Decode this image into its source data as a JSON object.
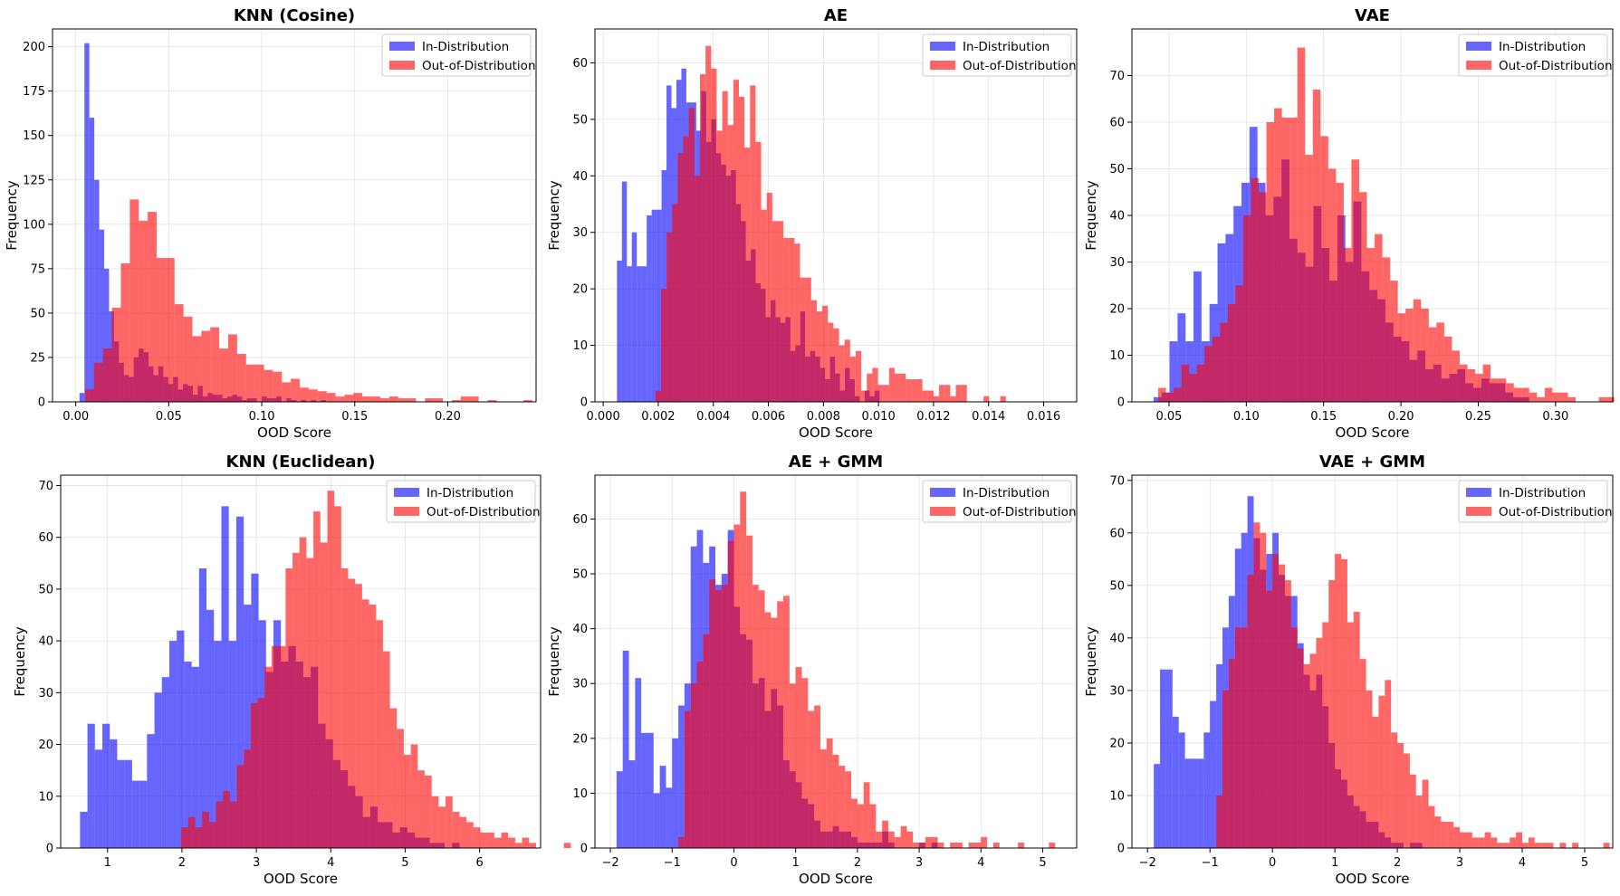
{
  "legend_placement": "top-right",
  "colors": {
    "in_distribution": "#0000ff",
    "out_of_distribution": "#ff0000",
    "alpha": 0.6
  },
  "legend": [
    "In-Distribution",
    "Out-of-Distribution"
  ],
  "chart_data": [
    {
      "type": "bar",
      "title": "KNN (Cosine)",
      "xlabel": "OOD Score",
      "ylabel": "Frequency",
      "xlim": [
        -0.0125,
        0.2475
      ],
      "ylim": [
        0,
        210
      ],
      "xticks": [
        "0.00",
        "0.05",
        "0.10",
        "0.15",
        "0.20"
      ],
      "xtick_values": [
        0,
        0.05,
        0.1,
        0.15,
        0.2
      ],
      "yticks": [
        "0",
        "25",
        "50",
        "75",
        "100",
        "125",
        "150",
        "175",
        "200"
      ],
      "ytick_values": [
        0,
        25,
        50,
        75,
        100,
        125,
        150,
        175,
        200
      ],
      "grid": true,
      "series": [
        {
          "name": "In-Distribution",
          "color": "#0000ff",
          "x_start": 0.002,
          "bin_width": 0.00265,
          "values": [
            5,
            202,
            160,
            125,
            97,
            75,
            51,
            34,
            22,
            15,
            14,
            25,
            30,
            28,
            20,
            15,
            20,
            14,
            10,
            14,
            7,
            10,
            9,
            4,
            9,
            3,
            5,
            4,
            4,
            2,
            3,
            4,
            3,
            1,
            2,
            2,
            0,
            3,
            2,
            2,
            3,
            0,
            2,
            1,
            0,
            1,
            0,
            1,
            0,
            1,
            0,
            0,
            0,
            0,
            0,
            0,
            0,
            0,
            0,
            0,
            0,
            0,
            0,
            0,
            0,
            0,
            0,
            0,
            0,
            0,
            0,
            0,
            0,
            0,
            0,
            0,
            0,
            0,
            0,
            0,
            0,
            0,
            0,
            0,
            0,
            0,
            0,
            0,
            0
          ]
        },
        {
          "name": "Out-of-Distribution",
          "color": "#ff0000",
          "x_start": 0.005,
          "bin_width": 0.00481,
          "values": [
            7,
            22,
            30,
            53,
            78,
            114,
            102,
            107,
            81,
            81,
            55,
            48,
            37,
            40,
            42,
            30,
            38,
            27,
            21,
            21,
            18,
            17,
            11,
            13,
            8,
            7,
            6,
            5,
            3,
            4,
            5,
            3,
            3,
            2,
            3,
            2,
            2,
            0,
            2,
            2,
            0,
            1,
            3,
            3,
            0,
            1,
            0,
            0,
            0,
            1
          ]
        }
      ]
    },
    {
      "type": "bar",
      "title": "AE",
      "xlabel": "OOD Score",
      "ylabel": "Frequency",
      "xlim": [
        -0.0003,
        0.0172
      ],
      "ylim": [
        0,
        66
      ],
      "xticks": [
        "0.000",
        "0.002",
        "0.004",
        "0.006",
        "0.008",
        "0.010",
        "0.012",
        "0.014",
        "0.016"
      ],
      "xtick_values": [
        0,
        0.002,
        0.004,
        0.006,
        0.008,
        0.01,
        0.012,
        0.014,
        0.016
      ],
      "yticks": [
        "0",
        "10",
        "20",
        "30",
        "40",
        "50",
        "60"
      ],
      "ytick_values": [
        0,
        10,
        20,
        30,
        40,
        50,
        60
      ],
      "grid": true,
      "series": [
        {
          "name": "In-Distribution",
          "color": "#0000ff",
          "x_start": 0.0005,
          "bin_width": 0.00018,
          "values": [
            25,
            39,
            24,
            30,
            24,
            24,
            33,
            34,
            34,
            41,
            56,
            52,
            57,
            59,
            53,
            53,
            48,
            55,
            46,
            50,
            44,
            42,
            40,
            41,
            35,
            32,
            25,
            27,
            21,
            20,
            15,
            18,
            15,
            14,
            15,
            9,
            10,
            16,
            8,
            9,
            8,
            6,
            4,
            8,
            5,
            2,
            6,
            4,
            1,
            0,
            2,
            1,
            2
          ]
        },
        {
          "name": "Out-of-Distribution",
          "color": "#ff0000",
          "x_start": 0.0019,
          "bin_width": 0.000202,
          "values": [
            2,
            20,
            30,
            35,
            44,
            47,
            52,
            40,
            58,
            63,
            59,
            48,
            55,
            49,
            57,
            54,
            45,
            56,
            46,
            34,
            37,
            32,
            32,
            29,
            29,
            28,
            22,
            22,
            18,
            16,
            17,
            14,
            13,
            10,
            11,
            8,
            9,
            2,
            5,
            6,
            3,
            3,
            6,
            5,
            5,
            4,
            4,
            4,
            2,
            2,
            1,
            3,
            3,
            1,
            3,
            3,
            0,
            0,
            0,
            1,
            0,
            0,
            1
          ]
        }
      ]
    },
    {
      "type": "bar",
      "title": "VAE",
      "xlabel": "OOD Score",
      "ylabel": "Frequency",
      "xlim": [
        0.026,
        0.337
      ],
      "ylim": [
        0,
        80
      ],
      "xticks": [
        "0.05",
        "0.10",
        "0.15",
        "0.20",
        "0.25",
        "0.30"
      ],
      "xtick_values": [
        0.05,
        0.1,
        0.15,
        0.2,
        0.25,
        0.3
      ],
      "yticks": [
        "0",
        "10",
        "20",
        "30",
        "40",
        "50",
        "60",
        "70"
      ],
      "ytick_values": [
        0,
        10,
        20,
        30,
        40,
        50,
        60,
        70
      ],
      "grid": true,
      "series": [
        {
          "name": "In-Distribution",
          "color": "#0000ff",
          "x_start": 0.04,
          "bin_width": 0.00517,
          "values": [
            1,
            2,
            13,
            19,
            13,
            28,
            13,
            21,
            34,
            36,
            42,
            47,
            59,
            47,
            40,
            44,
            52,
            35,
            32,
            29,
            42,
            33,
            26,
            40,
            30,
            43,
            28,
            24,
            22,
            17,
            14,
            13,
            9,
            11,
            7,
            8,
            5,
            6,
            7,
            4,
            3,
            5,
            4,
            4,
            2,
            1,
            1,
            0,
            0,
            0,
            0,
            0
          ]
        },
        {
          "name": "Out-of-Distribution",
          "color": "#ff0000",
          "x_start": 0.043,
          "bin_width": 0.005,
          "values": [
            3,
            2,
            3,
            8,
            6,
            8,
            12,
            14,
            17,
            21,
            25,
            40,
            48,
            45,
            60,
            63,
            61,
            61,
            76,
            53,
            67,
            57,
            50,
            47,
            33,
            52,
            45,
            33,
            36,
            31,
            26,
            19,
            20,
            22,
            20,
            16,
            17,
            14,
            11,
            8,
            7,
            6,
            8,
            5,
            5,
            4,
            3,
            3,
            2,
            1,
            3,
            2,
            2,
            1,
            0,
            0,
            0,
            1,
            1,
            0,
            1
          ]
        }
      ]
    },
    {
      "type": "bar",
      "title": "KNN (Euclidean)",
      "xlabel": "OOD Score",
      "ylabel": "Frequency",
      "xlim": [
        0.37,
        6.82
      ],
      "ylim": [
        0,
        72
      ],
      "xticks": [
        "1",
        "2",
        "3",
        "4",
        "5",
        "6"
      ],
      "xtick_values": [
        1,
        2,
        3,
        4,
        5,
        6
      ],
      "yticks": [
        "0",
        "10",
        "20",
        "30",
        "40",
        "50",
        "60",
        "70"
      ],
      "ytick_values": [
        0,
        10,
        20,
        30,
        40,
        50,
        60,
        70
      ],
      "grid": true,
      "series": [
        {
          "name": "In-Distribution",
          "color": "#0000ff",
          "x_start": 0.63,
          "bin_width": 0.1,
          "values": [
            7,
            24,
            19,
            24,
            21,
            17,
            17,
            13,
            13,
            22,
            30,
            33,
            40,
            42,
            36,
            35,
            54,
            46,
            40,
            66,
            40,
            64,
            47,
            53,
            44,
            34,
            44,
            36,
            39,
            36,
            33,
            35,
            24,
            21,
            17,
            15,
            12,
            10,
            6,
            8,
            5,
            5,
            3,
            4,
            3,
            2,
            2,
            1,
            1,
            0,
            1
          ]
        },
        {
          "name": "Out-of-Distribution",
          "color": "#ff0000",
          "x_start": 1.99,
          "bin_width": 0.0935,
          "values": [
            4,
            6,
            4,
            7,
            5,
            9,
            11,
            9,
            16,
            19,
            28,
            29,
            35,
            39,
            39,
            54,
            57,
            60,
            56,
            65,
            59,
            69,
            66,
            54,
            52,
            51,
            48,
            47,
            44,
            38,
            27,
            23,
            18,
            20,
            15,
            14,
            10,
            8,
            10,
            7,
            6,
            5,
            4,
            3,
            3,
            2,
            3,
            2,
            1,
            2,
            1,
            0,
            0,
            0,
            0,
            1
          ]
        }
      ]
    },
    {
      "type": "bar",
      "title": "AE + GMM",
      "xlabel": "OOD Score",
      "ylabel": "Frequency",
      "xlim": [
        -2.25,
        5.55
      ],
      "ylim": [
        0,
        68
      ],
      "xticks": [
        "−2",
        "−1",
        "0",
        "1",
        "2",
        "3",
        "4",
        "5"
      ],
      "xtick_values": [
        -2,
        -1,
        0,
        1,
        2,
        3,
        4,
        5
      ],
      "yticks": [
        "0",
        "10",
        "20",
        "30",
        "40",
        "50",
        "60"
      ],
      "ytick_values": [
        0,
        10,
        20,
        30,
        40,
        50,
        60
      ],
      "grid": true,
      "series": [
        {
          "name": "In-Distribution",
          "color": "#0000ff",
          "x_start": -1.9,
          "bin_width": 0.1,
          "values": [
            14,
            36,
            16,
            31,
            21,
            21,
            10,
            15,
            11,
            20,
            26,
            30,
            55,
            58,
            52,
            55,
            48,
            50,
            58,
            44,
            39,
            38,
            30,
            31,
            25,
            29,
            26,
            16,
            14,
            12,
            9,
            8,
            5,
            3,
            3,
            4,
            3,
            3,
            2,
            1,
            1,
            1,
            1,
            3,
            1,
            0,
            0,
            0,
            0,
            1,
            0,
            1,
            0,
            0
          ]
        },
        {
          "name": "Out-of-Distribution",
          "color": "#ff0000",
          "x_start": -0.9,
          "bin_width": 0.1,
          "values": [
            2,
            25,
            30,
            34,
            39,
            49,
            47,
            48,
            56,
            59,
            65,
            57,
            48,
            47,
            43,
            42,
            45,
            46,
            30,
            33,
            31,
            25,
            26,
            18,
            20,
            17,
            15,
            14,
            9,
            8,
            12,
            8,
            3,
            5,
            3,
            2,
            4,
            3,
            1,
            1,
            2,
            2,
            1,
            0,
            1,
            1,
            0,
            1,
            1,
            2,
            0,
            1,
            0,
            0,
            0,
            1,
            0,
            0,
            0,
            0,
            1
          ]
        }
      ]
    },
    {
      "type": "bar",
      "title": "VAE + GMM",
      "xlabel": "OOD Score",
      "ylabel": "Frequency",
      "xlim": [
        -2.25,
        5.45
      ],
      "ylim": [
        0,
        71
      ],
      "xticks": [
        "−2",
        "−1",
        "0",
        "1",
        "2",
        "3",
        "4",
        "5"
      ],
      "xtick_values": [
        -2,
        -1,
        0,
        1,
        2,
        3,
        4,
        5
      ],
      "yticks": [
        "0",
        "10",
        "20",
        "30",
        "40",
        "50",
        "60",
        "70"
      ],
      "ytick_values": [
        0,
        10,
        20,
        30,
        40,
        50,
        60,
        70
      ],
      "grid": true,
      "series": [
        {
          "name": "In-Distribution",
          "color": "#0000ff",
          "x_start": -1.9,
          "bin_width": 0.1,
          "values": [
            16,
            34,
            34,
            25,
            22,
            17,
            17,
            17,
            22,
            28,
            35,
            42,
            48,
            57,
            60,
            67,
            59,
            53,
            56,
            60,
            52,
            48,
            48,
            39,
            33,
            30,
            33,
            27,
            20,
            15,
            13,
            10,
            8,
            7,
            5,
            5,
            3,
            2,
            1,
            1,
            0,
            1,
            1,
            0,
            0,
            0,
            0,
            0,
            0,
            0,
            0
          ]
        },
        {
          "name": "Out-of-Distribution",
          "color": "#ff0000",
          "x_start": -0.9,
          "bin_width": 0.1,
          "values": [
            10,
            30,
            36,
            42,
            42,
            52,
            62,
            60,
            49,
            56,
            54,
            51,
            42,
            38,
            35,
            37,
            40,
            43,
            51,
            56,
            55,
            43,
            45,
            36,
            30,
            25,
            29,
            32,
            22,
            20,
            18,
            14,
            10,
            13,
            8,
            6,
            5,
            5,
            4,
            3,
            3,
            2,
            2,
            3,
            2,
            1,
            1,
            2,
            3,
            1,
            2,
            1,
            1,
            1,
            0,
            1,
            0,
            1,
            0,
            0,
            0,
            0,
            1
          ]
        }
      ]
    }
  ]
}
